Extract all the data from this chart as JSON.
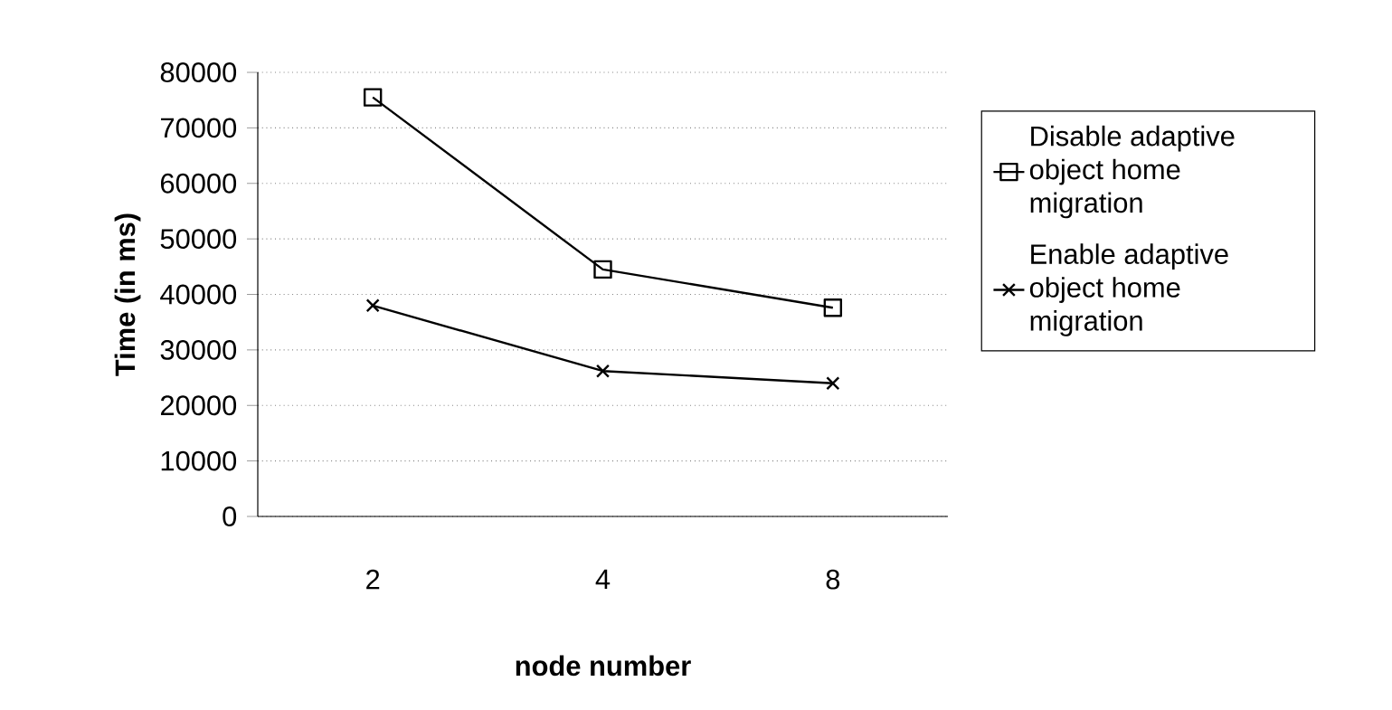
{
  "chart_data": {
    "type": "line",
    "xlabel": "node number",
    "ylabel": "Time (in ms)",
    "categories": [
      "2",
      "4",
      "8"
    ],
    "series": [
      {
        "name": "Disable adaptive object home migration",
        "color": "#000000",
        "marker": "square",
        "values": [
          75500,
          44500,
          37600
        ]
      },
      {
        "name": "Enable adaptive object home migration",
        "color": "#000000",
        "marker": "cross",
        "values": [
          38000,
          26200,
          24000
        ]
      }
    ],
    "ylim": [
      0,
      80000
    ],
    "yticks": [
      0,
      10000,
      20000,
      30000,
      40000,
      50000,
      60000,
      70000,
      80000
    ],
    "grid": "y",
    "legend": "right",
    "line_style": "solid"
  }
}
